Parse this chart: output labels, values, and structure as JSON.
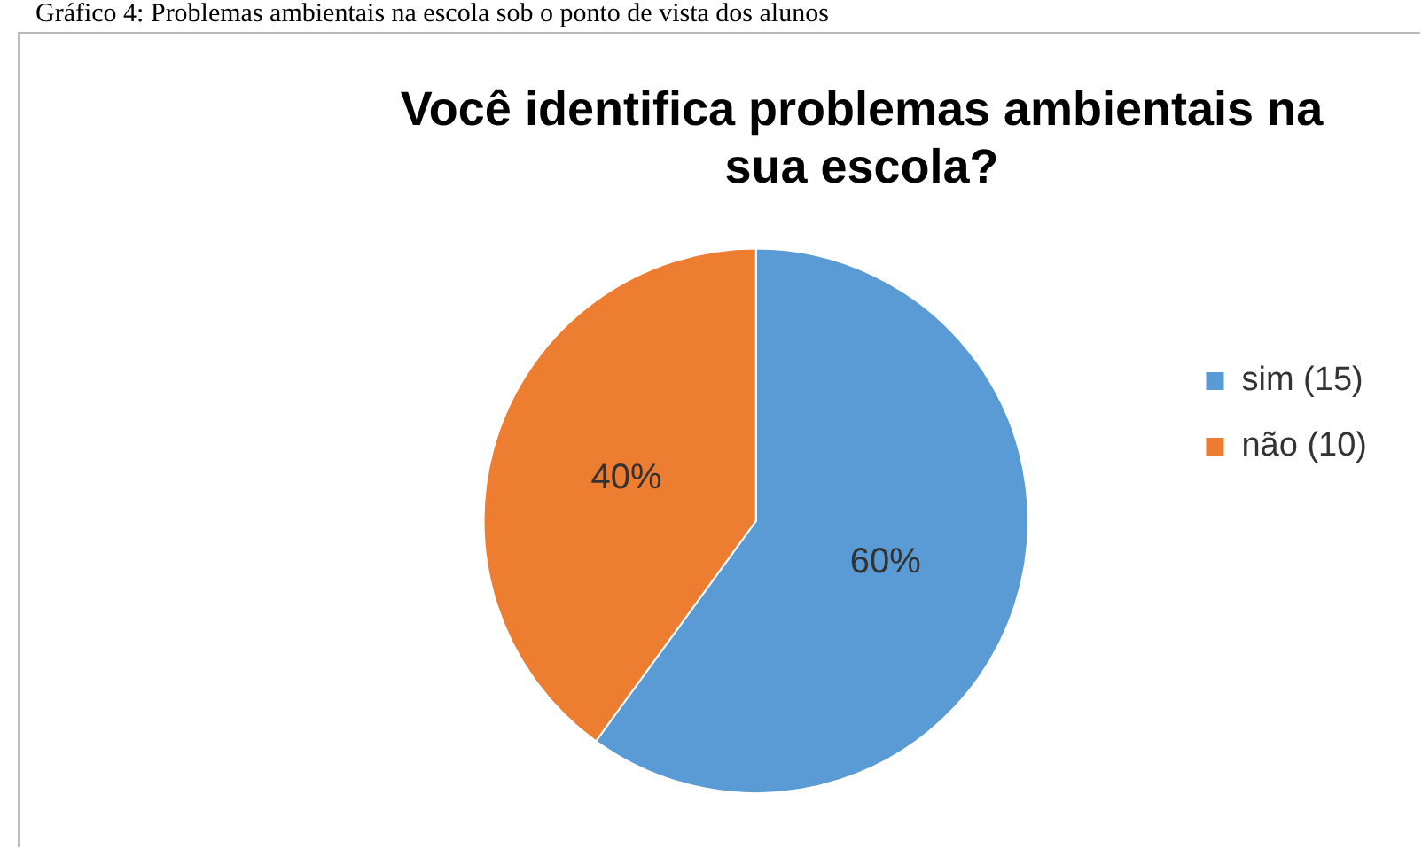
{
  "chart_data": {
    "type": "pie",
    "title": "Você identifica problemas ambientais na sua escola?",
    "annotations": [
      "Gráfico 4: Problemas ambientais na escola sob o ponto de vista dos alunos"
    ],
    "categories": [
      "sim (15)",
      "não (10)"
    ],
    "values": [
      60,
      40
    ],
    "colors": [
      "#5b9bd5",
      "#ed7d31"
    ],
    "value_labels": [
      "60%",
      "40%"
    ],
    "legend": "right"
  }
}
